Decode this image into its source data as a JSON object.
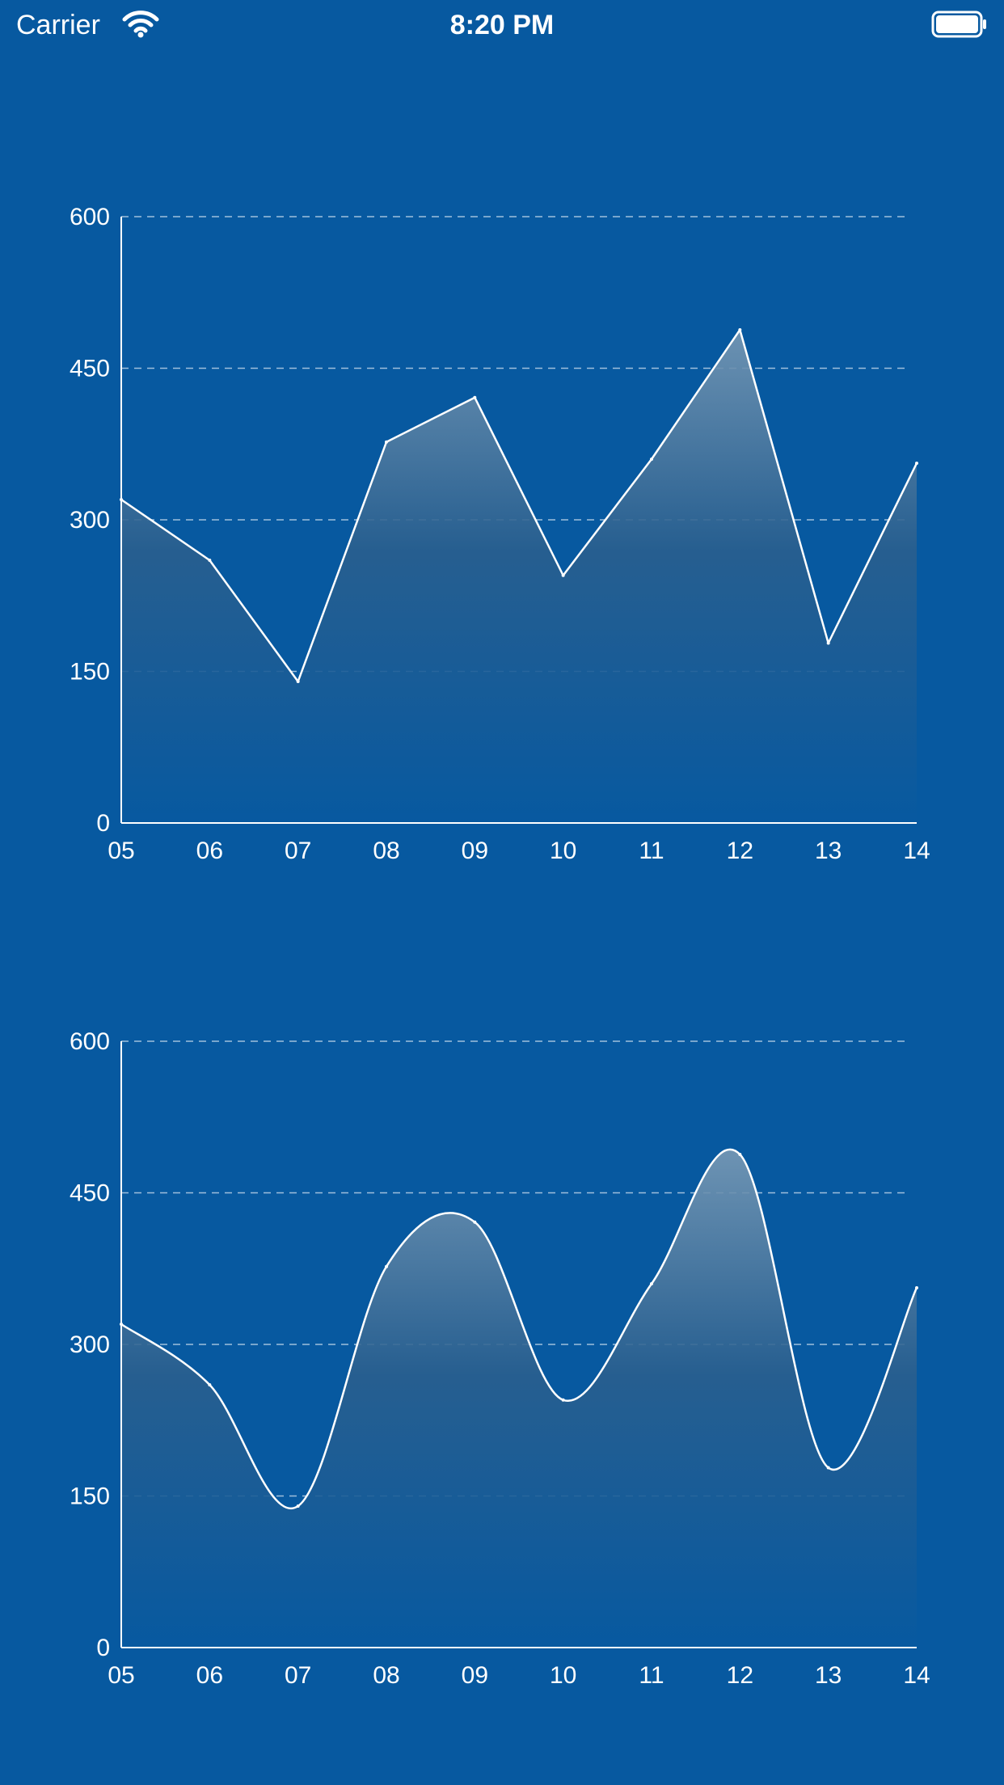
{
  "status_bar": {
    "carrier": "Carrier",
    "time": "8:20 PM",
    "wifi_icon": "wifi-icon",
    "battery_icon": "battery-icon"
  },
  "colors": {
    "background": "#0759a0",
    "line": "#ffffff",
    "grid": "#9fbfdc",
    "fill_top": "#9fb6c8",
    "fill_bottom": "#0759a0"
  },
  "chart_data": [
    {
      "type": "area",
      "curve": "linear",
      "categories": [
        "05",
        "06",
        "07",
        "08",
        "09",
        "10",
        "11",
        "12",
        "13",
        "14"
      ],
      "values": [
        320,
        260,
        140,
        377,
        421,
        245,
        360,
        488,
        178,
        356
      ],
      "y_ticks": [
        "0",
        "150",
        "300",
        "450",
        "600"
      ],
      "ylim": [
        0,
        600
      ],
      "grid": "horizontal-dashed",
      "legend": "none"
    },
    {
      "type": "area",
      "curve": "smooth",
      "categories": [
        "05",
        "06",
        "07",
        "08",
        "09",
        "10",
        "11",
        "12",
        "13",
        "14"
      ],
      "values": [
        320,
        260,
        140,
        377,
        421,
        245,
        360,
        488,
        178,
        356
      ],
      "y_ticks": [
        "0",
        "150",
        "300",
        "450",
        "600"
      ],
      "ylim": [
        0,
        600
      ],
      "grid": "horizontal-dashed",
      "legend": "none"
    }
  ]
}
